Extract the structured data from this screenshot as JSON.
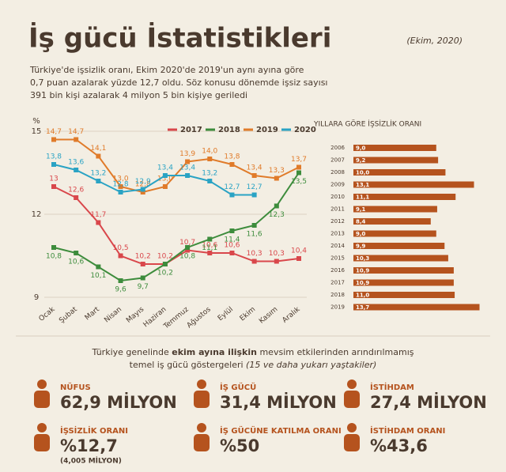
{
  "header": {
    "title": "İş gücü İstatistikleri",
    "date": "(Ekim, 2020)",
    "intro": [
      "Türkiye'de işsizlik oranı, Ekim 2020'de 2019'un aynı ayına göre",
      "0,7 puan azalarak yüzde 12,7 oldu. Söz konusu dönemde işsiz sayısı",
      "391 bin kişi azalarak 4 milyon 5 bin kişiye geriledi"
    ]
  },
  "chart_data": [
    {
      "type": "line",
      "y_label": "%",
      "categories": [
        "Ocak",
        "Şubat",
        "Mart",
        "Nisan",
        "Mayıs",
        "Haziran",
        "Temmuz",
        "Ağustos",
        "Eylül",
        "Ekim",
        "Kasım",
        "Aralık"
      ],
      "ylim": [
        9,
        15
      ],
      "yticks": [
        9,
        12,
        15
      ],
      "grid": true,
      "series": [
        {
          "name": "2017",
          "color": "#d9474b",
          "values": [
            13,
            12.6,
            11.7,
            10.5,
            10.2,
            10.2,
            10.7,
            10.6,
            10.6,
            10.3,
            10.3,
            10.4
          ],
          "value_labels": [
            "13",
            "12,6",
            "11,7",
            "10,5",
            "10,2",
            "10,2",
            "10,7",
            "10,6",
            "10,6",
            "10,3",
            "10,3",
            "10,4"
          ]
        },
        {
          "name": "2018",
          "color": "#3d8c3c",
          "values": [
            10.8,
            10.6,
            10.1,
            9.6,
            9.7,
            10.2,
            10.8,
            11.1,
            11.4,
            11.6,
            12.3,
            13.5
          ],
          "value_labels": [
            "10,8",
            "10,6",
            "10,1",
            "9,6",
            "9,7",
            "10,2",
            "10,8",
            "11,1",
            "11,4",
            "11,6",
            "12,3",
            "13,5"
          ]
        },
        {
          "name": "2019",
          "color": "#e07b2a",
          "values": [
            14.7,
            14.7,
            14.1,
            13.0,
            12.8,
            13.0,
            13.9,
            14.0,
            13.8,
            13.4,
            13.3,
            13.7
          ],
          "value_labels": [
            "14,7",
            "14,7",
            "14,1",
            "13,0",
            "12,8",
            "13,0",
            "13,9",
            "14,0",
            "13,8",
            "13,4",
            "13,3",
            "13,7"
          ]
        },
        {
          "name": "2020",
          "color": "#2aa3c4",
          "values": [
            13.8,
            13.6,
            13.2,
            12.8,
            12.9,
            13.4,
            13.4,
            13.2,
            12.7,
            12.7,
            null,
            null
          ],
          "value_labels": [
            "13,8",
            "13,6",
            "13,2",
            "12,8",
            "12,9",
            "13,4",
            "13,4",
            "13,2",
            "12,7",
            "12,7",
            null,
            null
          ]
        }
      ]
    },
    {
      "type": "hbar",
      "title": "YILLARA GÖRE İŞSİZLİK ORANI",
      "color": "#b5531e",
      "xlim": [
        0,
        14
      ],
      "categories": [
        "2006",
        "2007",
        "2008",
        "2009",
        "2010",
        "2011",
        "2012",
        "2013",
        "2014",
        "2015",
        "2016",
        "2017",
        "2018",
        "2019"
      ],
      "values": [
        9.0,
        9.2,
        10.0,
        13.1,
        11.1,
        9.1,
        8.4,
        9.0,
        9.9,
        10.3,
        10.9,
        10.9,
        11.0,
        13.7
      ],
      "value_labels": [
        "9,0",
        "9,2",
        "10,0",
        "13,1",
        "11,1",
        "9,1",
        "8,4",
        "9,0",
        "9,9",
        "10,3",
        "10,9",
        "10,9",
        "11,0",
        "13,7"
      ]
    }
  ],
  "footer": {
    "heading": [
      "Türkiye genelinde ",
      "ekim ayına ilişkin",
      " mevsim etkilerinden arındırılmamış"
    ],
    "subheading": [
      "temel iş gücü göstergeleri ",
      "(15 ve daha yukarı yaştakiler)"
    ],
    "stats": [
      {
        "label": "NÜFUS",
        "value": "62,9 MİLYON"
      },
      {
        "label": "İŞ GÜCÜ",
        "value": "31,4 MİLYON"
      },
      {
        "label": "İSTİHDAM",
        "value": "27,4 MİLYON"
      },
      {
        "label": "İŞSİZLİK ORANI",
        "value": "%12,7",
        "note": "(4,005 MİLYON)"
      },
      {
        "label": "İŞ GÜCÜNE KATILMA ORANI",
        "value": "%50"
      },
      {
        "label": "İSTİHDAM ORANI",
        "value": "%43,6"
      }
    ]
  }
}
